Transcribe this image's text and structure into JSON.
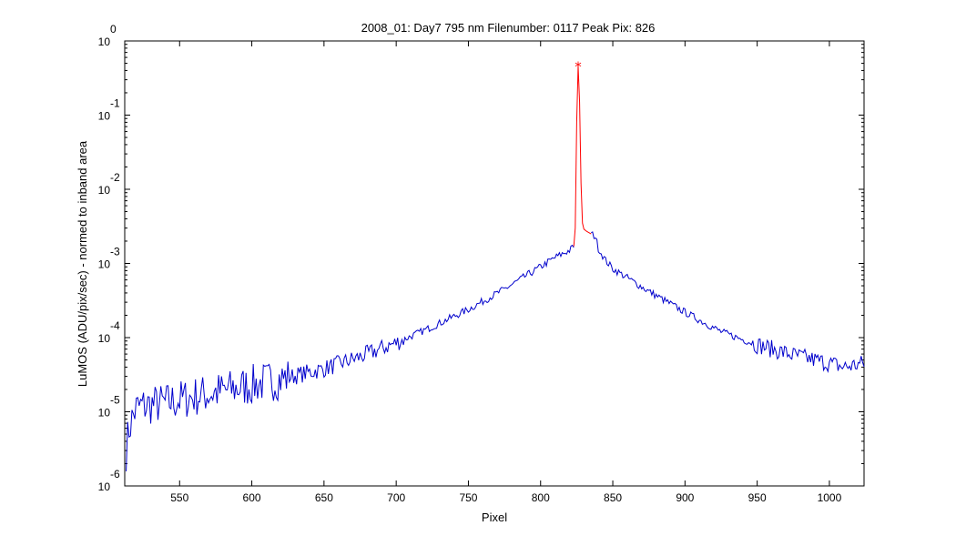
{
  "chart_data": {
    "type": "line",
    "title": "2008_01: Day7  795 nm  Filenumber: 0117 Peak Pix: 826",
    "xlabel": "Pixel",
    "ylabel": "LuMOS (ADU/pix/sec) - normed to inband area",
    "xlim": [
      512,
      1024
    ],
    "ylim": [
      1e-06,
      1
    ],
    "y_scale": "log",
    "grid": false,
    "x_ticks": [
      550,
      600,
      650,
      700,
      750,
      800,
      850,
      900,
      950,
      1000
    ],
    "x_tick_labels": [
      "550",
      "600",
      "650",
      "700",
      "750",
      "800",
      "850",
      "900",
      "950",
      "1000"
    ],
    "y_ticks": [
      {
        "value": 1,
        "base": "10",
        "exp": "0"
      },
      {
        "value": 0.1,
        "base": "10",
        "exp": "-1"
      },
      {
        "value": 0.01,
        "base": "10",
        "exp": "-2"
      },
      {
        "value": 0.001,
        "base": "10",
        "exp": "-3"
      },
      {
        "value": 0.0001,
        "base": "10",
        "exp": "-4"
      },
      {
        "value": 1e-05,
        "base": "10",
        "exp": "-5"
      },
      {
        "value": 1e-06,
        "base": "10",
        "exp": "-6"
      }
    ],
    "series": [
      {
        "role": "out-of-band-left",
        "color": "#0000cc",
        "noisy": true,
        "x": [
          513,
          515,
          518,
          520,
          525,
          540,
          560,
          580,
          600,
          625,
          650,
          675,
          700,
          725,
          750,
          775,
          800,
          810,
          820,
          823
        ],
        "y": [
          3e-06,
          6e-06,
          9e-06,
          1.1e-05,
          1.2e-05,
          1.3e-05,
          1.6e-05,
          1.9e-05,
          2.3e-05,
          2.9e-05,
          3.8e-05,
          5.5e-05,
          8.5e-05,
          0.00014,
          0.00024,
          0.00045,
          0.0009,
          0.0012,
          0.0015,
          0.0017
        ]
      },
      {
        "role": "inband",
        "color": "#ff0000",
        "noisy": false,
        "x": [
          823,
          824,
          825,
          826,
          827,
          828,
          829,
          830,
          832,
          835
        ],
        "y": [
          0.0017,
          0.003,
          0.08,
          0.46,
          0.15,
          0.012,
          0.0035,
          0.0029,
          0.0027,
          0.0025
        ]
      },
      {
        "role": "out-of-band-right",
        "color": "#0000cc",
        "noisy": true,
        "x": [
          835,
          838,
          840,
          845,
          850,
          875,
          900,
          925,
          950,
          975,
          1000,
          1010,
          1024
        ],
        "y": [
          0.0025,
          0.0023,
          0.0016,
          0.0011,
          0.00085,
          0.00042,
          0.00022,
          0.00012,
          8e-05,
          5.8e-05,
          4.5e-05,
          4e-05,
          4.5e-05
        ]
      }
    ],
    "peak_marker": {
      "x": 826,
      "y": 0.46,
      "symbol": "*",
      "color": "#ff0000"
    }
  }
}
